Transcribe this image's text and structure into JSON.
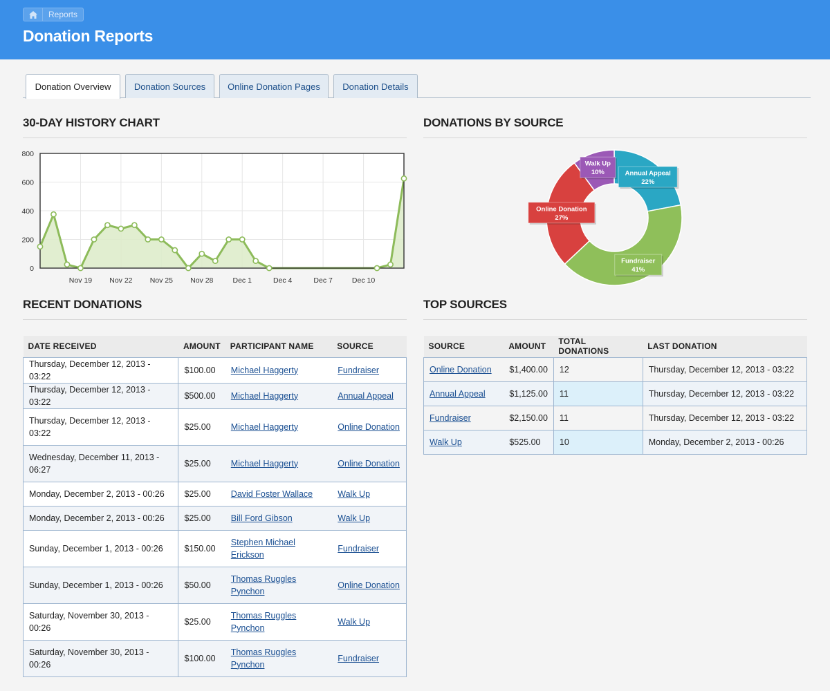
{
  "breadcrumb": {
    "home_icon": "home-icon",
    "label": "Reports"
  },
  "page_title": "Donation Reports",
  "tabs": [
    {
      "label": "Donation Overview",
      "active": true
    },
    {
      "label": "Donation Sources",
      "active": false
    },
    {
      "label": "Online Donation Pages",
      "active": false
    },
    {
      "label": "Donation Details",
      "active": false
    }
  ],
  "sections": {
    "history": "30-DAY HISTORY CHART",
    "by_source": "DONATIONS BY SOURCE",
    "recent": "RECENT DONATIONS",
    "top": "TOP SOURCES"
  },
  "chart_data": [
    {
      "type": "area",
      "y_ticks": [
        0,
        200,
        400,
        600,
        800
      ],
      "ylim": [
        0,
        800
      ],
      "x_tick_labels": [
        "Nov 19",
        "Nov 22",
        "Nov 25",
        "Nov 28",
        "Dec 1",
        "Dec 4",
        "Dec 7",
        "Dec 10"
      ],
      "x": [
        "Nov 16",
        "Nov 17",
        "Nov 18",
        "Nov 19",
        "Nov 20",
        "Nov 21",
        "Nov 22",
        "Nov 23",
        "Nov 24",
        "Nov 25",
        "Nov 26",
        "Nov 27",
        "Nov 28",
        "Nov 29",
        "Nov 30",
        "Dec 1",
        "Dec 2",
        "Dec 3",
        "Dec 4",
        "Dec 5",
        "Dec 6",
        "Dec 7",
        "Dec 8",
        "Dec 9",
        "Dec 10",
        "Dec 11",
        "Dec 12",
        "Dec 13"
      ],
      "series": [
        {
          "values": [
            150,
            375,
            25,
            0,
            200,
            300,
            275,
            300,
            200,
            200,
            125,
            0,
            100,
            50,
            200,
            200,
            50,
            0,
            0,
            0,
            0,
            0,
            0,
            0,
            0,
            0,
            25,
            625
          ],
          "markers": [
            true,
            true,
            true,
            true,
            true,
            true,
            true,
            true,
            true,
            true,
            true,
            true,
            true,
            true,
            true,
            true,
            true,
            true,
            false,
            false,
            false,
            false,
            false,
            false,
            false,
            true,
            true,
            true
          ]
        }
      ],
      "colors": {
        "line": "#8dbb5a",
        "fill": "#dcebc8"
      }
    },
    {
      "type": "pie",
      "donut": true,
      "slices": [
        {
          "label": "Annual Appeal",
          "pct_label": "22%",
          "value": 22,
          "color": "#2aa7c4"
        },
        {
          "label": "Fundraiser",
          "pct_label": "41%",
          "value": 41,
          "color": "#8fbf5a"
        },
        {
          "label": "Online Donation",
          "pct_label": "27%",
          "value": 27,
          "color": "#d8413f"
        },
        {
          "label": "Walk Up",
          "pct_label": "10%",
          "value": 10,
          "color": "#9b59b6"
        }
      ]
    }
  ],
  "recent": {
    "headers": [
      "DATE RECEIVED",
      "AMOUNT",
      "PARTICIPANT NAME",
      "SOURCE"
    ],
    "rows": [
      {
        "date": "Thursday, December 12, 2013 - 03:22",
        "amount": "$100.00",
        "name": "Michael Haggerty",
        "source": "Fundraiser"
      },
      {
        "date": "Thursday, December 12, 2013 - 03:22",
        "amount": "$500.00",
        "name": "Michael Haggerty",
        "source": "Annual Appeal"
      },
      {
        "date": "Thursday, December 12, 2013 - 03:22",
        "amount": "$25.00",
        "name": "Michael Haggerty",
        "source": "Online Donation"
      },
      {
        "date": "Wednesday, December 11, 2013 - 06:27",
        "amount": "$25.00",
        "name": "Michael Haggerty",
        "source": "Online Donation"
      },
      {
        "date": "Monday, December 2, 2013 - 00:26",
        "amount": "$25.00",
        "name": "David Foster Wallace",
        "source": "Walk Up"
      },
      {
        "date": "Monday, December 2, 2013 - 00:26",
        "amount": "$25.00",
        "name": "Bill Ford Gibson",
        "source": "Walk Up"
      },
      {
        "date": "Sunday, December 1, 2013 - 00:26",
        "amount": "$150.00",
        "name": "Stephen Michael Erickson",
        "source": "Fundraiser"
      },
      {
        "date": "Sunday, December 1, 2013 - 00:26",
        "amount": "$50.00",
        "name": "Thomas Ruggles Pynchon",
        "source": "Online Donation"
      },
      {
        "date": "Saturday, November 30, 2013 - 00:26",
        "amount": "$25.00",
        "name": "Thomas Ruggles Pynchon",
        "source": "Walk Up"
      },
      {
        "date": "Saturday, November 30, 2013 - 00:26",
        "amount": "$100.00",
        "name": "Thomas Ruggles Pynchon",
        "source": "Fundraiser"
      }
    ]
  },
  "top": {
    "headers": [
      "SOURCE",
      "AMOUNT",
      "TOTAL DONATIONS",
      "LAST DONATION"
    ],
    "rows": [
      {
        "source": "Online Donation",
        "amount": "$1,400.00",
        "total": "12",
        "last": "Thursday, December 12, 2013 - 03:22"
      },
      {
        "source": "Annual Appeal",
        "amount": "$1,125.00",
        "total": "11",
        "last": "Thursday, December 12, 2013 - 03:22"
      },
      {
        "source": "Fundraiser",
        "amount": "$2,150.00",
        "total": "11",
        "last": "Thursday, December 12, 2013 - 03:22"
      },
      {
        "source": "Walk Up",
        "amount": "$525.00",
        "total": "10",
        "last": "Monday, December 2, 2013 - 00:26"
      }
    ]
  }
}
